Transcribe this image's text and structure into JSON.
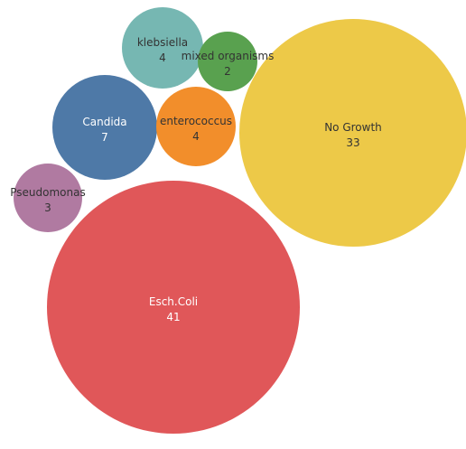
{
  "chart_data": {
    "type": "bubble",
    "title": "",
    "items": [
      {
        "label": "Esch.Coli",
        "value": 41,
        "color": "#e05759",
        "text_color": "#ffffff"
      },
      {
        "label": "No Growth",
        "value": 33,
        "color": "#edc948",
        "text_color": "#333333"
      },
      {
        "label": "Candida",
        "value": 7,
        "color": "#4e79a7",
        "text_color": "#ffffff"
      },
      {
        "label": "klebsiella",
        "value": 4,
        "color": "#76b7b2",
        "text_color": "#333333"
      },
      {
        "label": "enterococcus",
        "value": 4,
        "color": "#f28e2b",
        "text_color": "#333333"
      },
      {
        "label": "Pseudomonas",
        "value": 3,
        "color": "#b07aa1",
        "text_color": "#333333"
      },
      {
        "label": "mixed organisms",
        "value": 2,
        "color": "#59a14f",
        "text_color": "#333333"
      }
    ]
  }
}
